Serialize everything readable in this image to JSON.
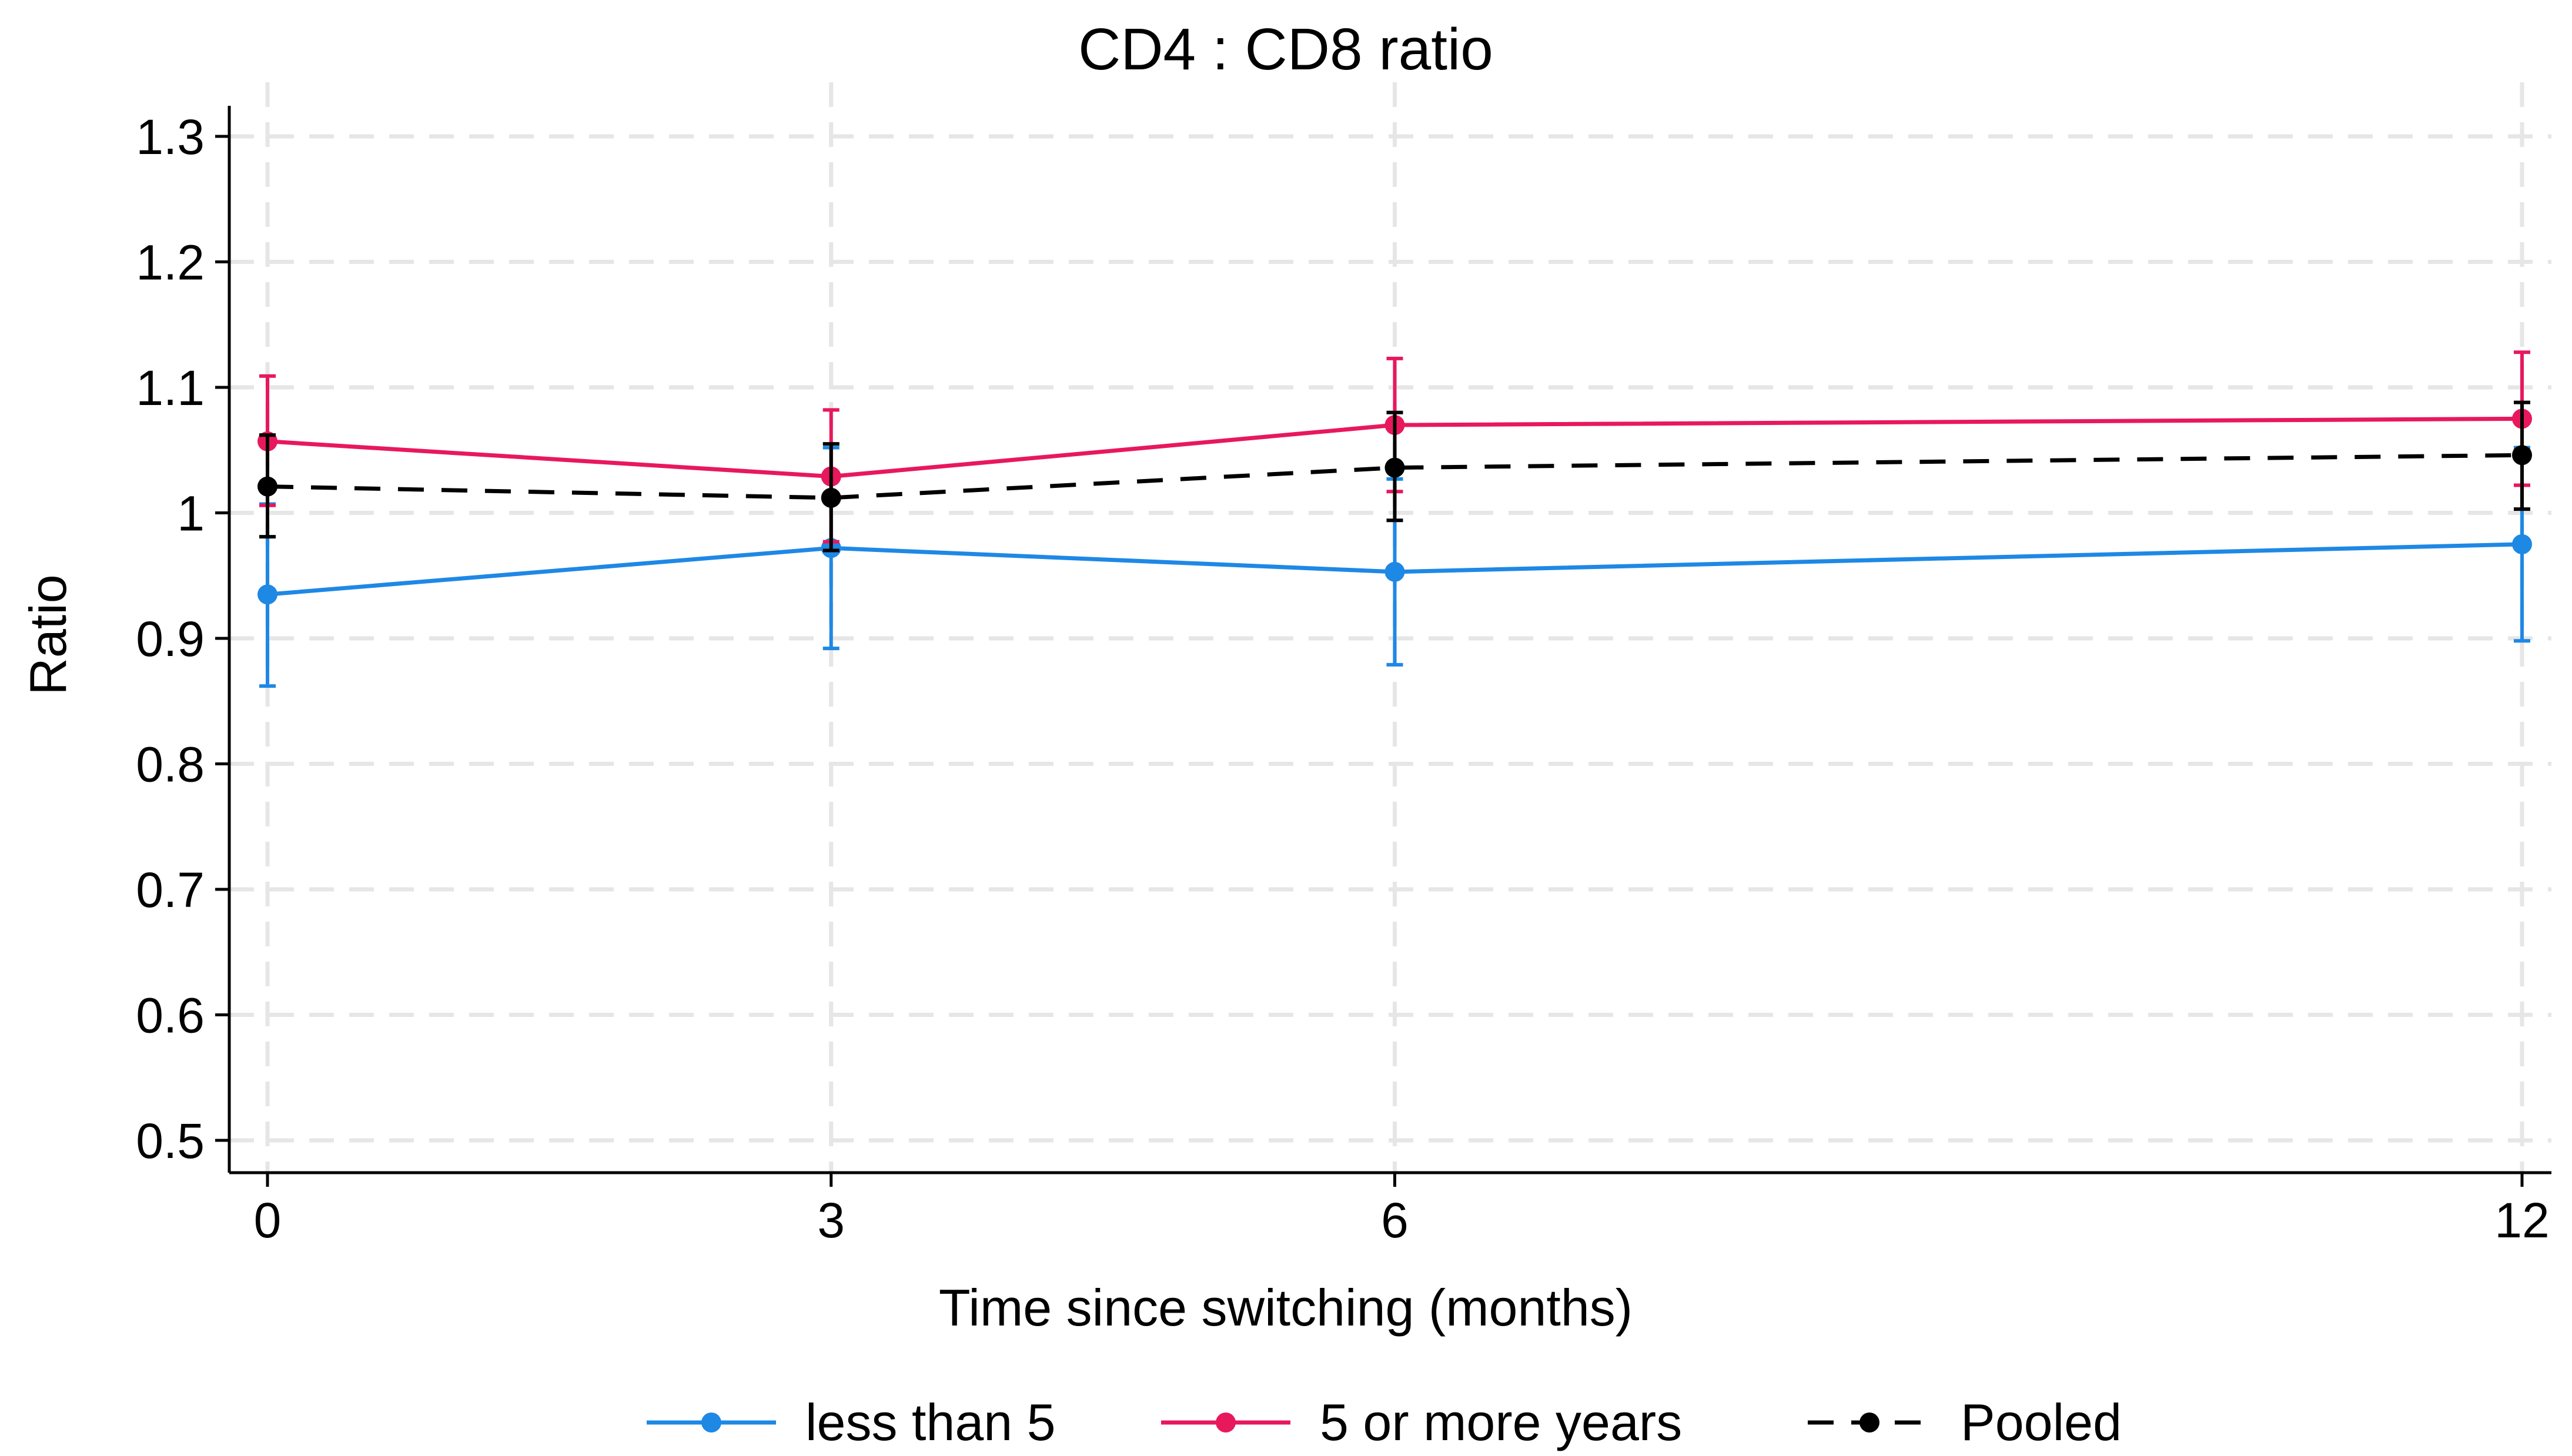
{
  "chart_data": {
    "type": "line",
    "title": "CD4 : CD8 ratio",
    "xlabel": "Time since switching (months)",
    "ylabel": "Ratio",
    "x": [
      0,
      3,
      6,
      12
    ],
    "xlim": [
      0,
      12
    ],
    "ylim": [
      0.5,
      1.3
    ],
    "xticks": [
      "0",
      "3",
      "6",
      "12"
    ],
    "yticks": [
      "0.5",
      "0.6",
      "0.7",
      "0.8",
      "0.9",
      "1",
      "1.1",
      "1.2",
      "1.3"
    ],
    "grid": true,
    "legend_position": "bottom",
    "series": [
      {
        "name": "less than 5",
        "color": "#1e88e5",
        "dash": "solid",
        "values": [
          0.935,
          0.972,
          0.953,
          0.975
        ],
        "lower": [
          0.862,
          0.892,
          0.879,
          0.898
        ],
        "upper": [
          1.007,
          1.052,
          1.027,
          1.052
        ]
      },
      {
        "name": "5 or more years",
        "color": "#e8185d",
        "dash": "solid",
        "values": [
          1.057,
          1.029,
          1.07,
          1.075
        ],
        "lower": [
          1.006,
          0.977,
          1.017,
          1.022
        ],
        "upper": [
          1.109,
          1.082,
          1.123,
          1.128
        ]
      },
      {
        "name": "Pooled",
        "color": "#000000",
        "dash": "dashed",
        "values": [
          1.021,
          1.012,
          1.036,
          1.046
        ],
        "lower": [
          0.981,
          0.97,
          0.994,
          1.003
        ],
        "upper": [
          1.062,
          1.055,
          1.08,
          1.088
        ]
      }
    ]
  }
}
